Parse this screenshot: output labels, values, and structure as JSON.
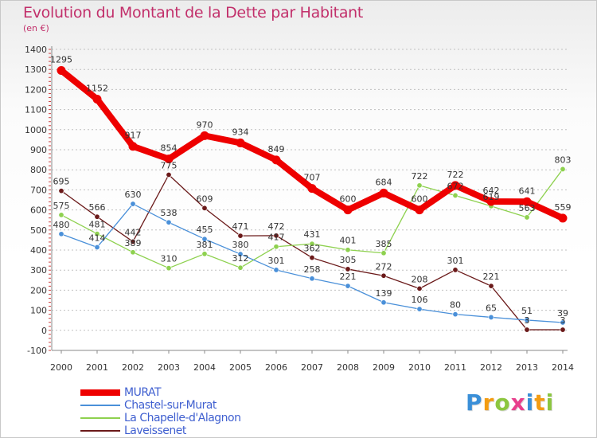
{
  "header": {
    "title": "Evolution du Montant de la Dette par Habitant",
    "subtitle": "(en €)"
  },
  "logo": {
    "text": "Proxiti",
    "letter_colors": [
      "#3a8fd8",
      "#f39c12",
      "#8cc63f",
      "#e83e8c",
      "#3a8fd8",
      "#f39c12",
      "#8cc63f"
    ]
  },
  "colors": {
    "title": "#c2306b",
    "legend_text": "#4060d0",
    "grid": "#c0c0c0",
    "axis_text": "#333333"
  },
  "chart_data": {
    "type": "line",
    "title": "Evolution du Montant de la Dette par Habitant",
    "subtitle": "(en €)",
    "x": [
      "2000",
      "2001",
      "2002",
      "2003",
      "2004",
      "2005",
      "2006",
      "2007",
      "2008",
      "2009",
      "2010",
      "2011",
      "2012",
      "2013",
      "2014"
    ],
    "ylim": [
      -100,
      1400
    ],
    "yticks": [
      -100,
      0,
      100,
      200,
      300,
      400,
      500,
      600,
      700,
      800,
      900,
      1000,
      1100,
      1200,
      1300,
      1400
    ],
    "grid": "horizontal dashed",
    "legend_position": "bottom-left",
    "series": [
      {
        "name": "MURAT",
        "color": "#ee0000",
        "values": [
          1295,
          1152,
          917,
          854,
          970,
          934,
          849,
          707,
          600,
          684,
          600,
          722,
          642,
          641,
          559
        ]
      },
      {
        "name": "Chastel-sur-Murat",
        "color": "#4a90d9",
        "values": [
          480,
          414,
          630,
          538,
          455,
          380,
          301,
          258,
          221,
          139,
          106,
          80,
          65,
          51,
          39
        ]
      },
      {
        "name": "La Chapelle-d'Alagnon",
        "color": "#8ed14f",
        "values": [
          575,
          481,
          389,
          310,
          381,
          312,
          417,
          431,
          401,
          385,
          722,
          672,
          619,
          563,
          803
        ]
      },
      {
        "name": "Laveissenet",
        "color": "#6b1a1a",
        "values": [
          695,
          566,
          442,
          775,
          609,
          471,
          472,
          362,
          305,
          272,
          208,
          301,
          221,
          3,
          3
        ]
      }
    ]
  }
}
